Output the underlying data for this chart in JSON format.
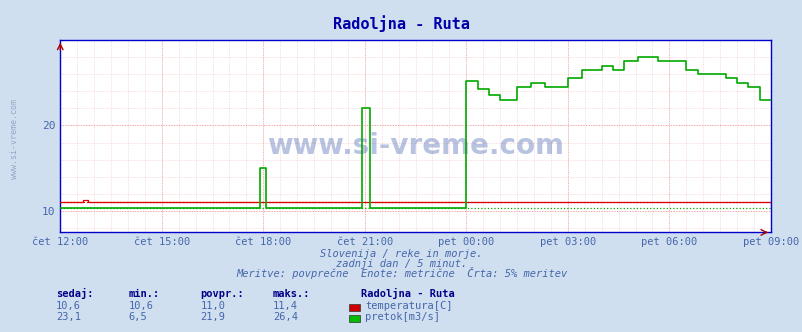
{
  "title": "Radoljna - Ruta",
  "title_color": "#0000aa",
  "bg_color": "#d0dff0",
  "plot_bg_color": "#ffffff",
  "xlabel_color": "#4466aa",
  "text_color": "#4466aa",
  "x_tick_labels": [
    "čet 12:00",
    "čet 15:00",
    "čet 18:00",
    "čet 21:00",
    "pet 00:00",
    "pet 03:00",
    "pet 06:00",
    "pet 09:00"
  ],
  "x_tick_positions": [
    0,
    36,
    72,
    108,
    144,
    180,
    216,
    252
  ],
  "ylim": [
    7.5,
    30
  ],
  "yticks": [
    10,
    20
  ],
  "xlim": [
    0,
    252
  ],
  "subtitle1": "Slovenija / reke in morje.",
  "subtitle2": "zadnji dan / 5 minut.",
  "subtitle3": "Meritve: povprečne  Enote: metrične  Črta: 5% meritev",
  "watermark": "www.si-vreme.com",
  "legend_title": "Radoljna - Ruta",
  "legend_items": [
    {
      "label": "temperatura[C]",
      "color": "#cc0000"
    },
    {
      "label": "pretok[m3/s]",
      "color": "#00bb00"
    }
  ],
  "table_headers": [
    "sedaj:",
    "min.:",
    "povpr.:",
    "maks.:"
  ],
  "table_row1": [
    "10,6",
    "10,6",
    "11,0",
    "11,4"
  ],
  "table_row2": [
    "23,1",
    "6,5",
    "21,9",
    "26,4"
  ],
  "temp_color": "#dd0000",
  "flow_color": "#00aa00",
  "dotted_temp_color": "#dd0000",
  "dotted_flow_color": "#00aa00",
  "spine_color": "#0000cc",
  "arrow_color": "#aa0000",
  "left_watermark_color": "#8899bb",
  "n_points": 253
}
